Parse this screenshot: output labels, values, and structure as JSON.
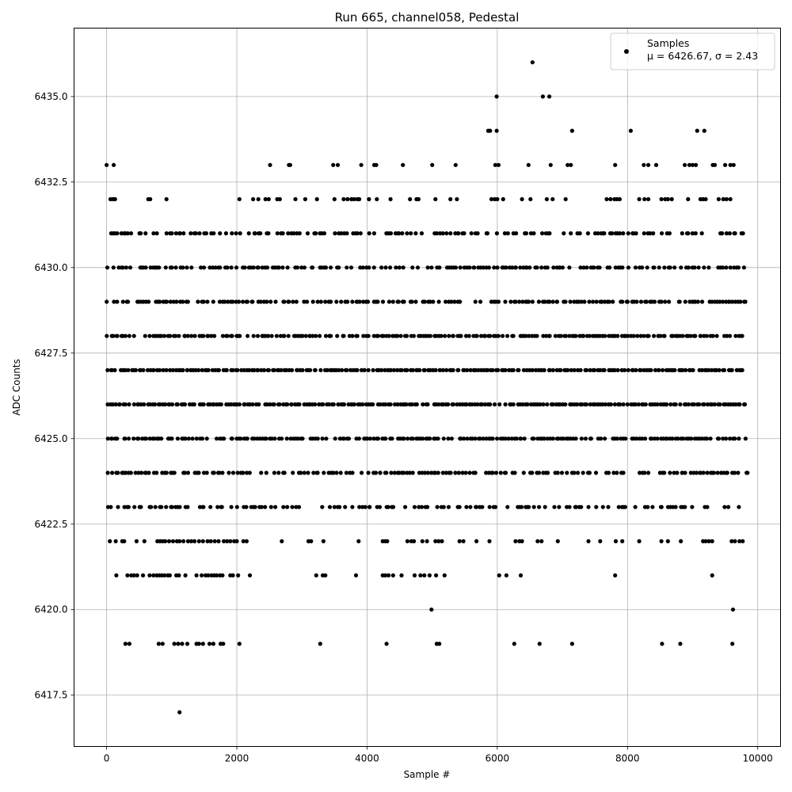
{
  "chart_data": {
    "type": "scatter",
    "title": "Run 665, channel058, Pedestal",
    "xlabel": "Sample #",
    "ylabel": "ADC Counts",
    "xlim": [
      -500,
      10350
    ],
    "ylim": [
      6416.0,
      6437.0
    ],
    "xticks": [
      0,
      2000,
      4000,
      6000,
      8000,
      10000
    ],
    "yticks": [
      6417.5,
      6420.0,
      6422.5,
      6425.0,
      6427.5,
      6430.0,
      6432.5,
      6435.0
    ],
    "grid": true,
    "legend": {
      "placement": "top-right",
      "entries": [
        {
          "name": "Samples",
          "stats": "μ = 6426.67, σ = 2.43"
        }
      ]
    },
    "colors": {
      "points": "#000000",
      "grid": "#b0b0b0"
    },
    "sample_range": [
      0,
      9850
    ],
    "dense_levels": [
      {
        "y": 6423,
        "fraction": 0.55
      },
      {
        "y": 6424,
        "fraction": 0.7
      },
      {
        "y": 6425,
        "fraction": 0.85
      },
      {
        "y": 6426,
        "fraction": 0.95
      },
      {
        "y": 6427,
        "fraction": 0.95
      },
      {
        "y": 6428,
        "fraction": 0.85
      },
      {
        "y": 6429,
        "fraction": 0.75
      },
      {
        "y": 6430,
        "fraction": 0.7
      },
      {
        "y": 6431,
        "fraction": 0.6
      }
    ],
    "sparse_points": [
      {
        "x": 0,
        "y": 6433
      },
      {
        "x": 110,
        "y": 6433
      },
      {
        "x": 2510,
        "y": 6433
      },
      {
        "x": 2800,
        "y": 6433
      },
      {
        "x": 2820,
        "y": 6433
      },
      {
        "x": 3480,
        "y": 6433
      },
      {
        "x": 3550,
        "y": 6433
      },
      {
        "x": 3910,
        "y": 6433
      },
      {
        "x": 4110,
        "y": 6433
      },
      {
        "x": 4140,
        "y": 6433
      },
      {
        "x": 4550,
        "y": 6433
      },
      {
        "x": 5000,
        "y": 6433
      },
      {
        "x": 5360,
        "y": 6433
      },
      {
        "x": 5970,
        "y": 6433
      },
      {
        "x": 6020,
        "y": 6433
      },
      {
        "x": 6480,
        "y": 6433
      },
      {
        "x": 6820,
        "y": 6433
      },
      {
        "x": 7080,
        "y": 6433
      },
      {
        "x": 7130,
        "y": 6433
      },
      {
        "x": 7810,
        "y": 6433
      },
      {
        "x": 8250,
        "y": 6433
      },
      {
        "x": 8320,
        "y": 6433
      },
      {
        "x": 8440,
        "y": 6433
      },
      {
        "x": 8880,
        "y": 6433
      },
      {
        "x": 8950,
        "y": 6433
      },
      {
        "x": 9000,
        "y": 6433
      },
      {
        "x": 9050,
        "y": 6433
      },
      {
        "x": 9310,
        "y": 6433
      },
      {
        "x": 9340,
        "y": 6433
      },
      {
        "x": 9500,
        "y": 6433
      },
      {
        "x": 9580,
        "y": 6433
      },
      {
        "x": 9630,
        "y": 6433
      },
      {
        "x": 5860,
        "y": 6434
      },
      {
        "x": 5890,
        "y": 6434
      },
      {
        "x": 5990,
        "y": 6434
      },
      {
        "x": 7150,
        "y": 6434
      },
      {
        "x": 8050,
        "y": 6434
      },
      {
        "x": 9070,
        "y": 6434
      },
      {
        "x": 9180,
        "y": 6434
      },
      {
        "x": 5990,
        "y": 6435
      },
      {
        "x": 6700,
        "y": 6435
      },
      {
        "x": 6800,
        "y": 6435
      },
      {
        "x": 6540,
        "y": 6436
      },
      {
        "x": 60,
        "y": 6432
      },
      {
        "x": 100,
        "y": 6432
      },
      {
        "x": 130,
        "y": 6432
      },
      {
        "x": 640,
        "y": 6432
      },
      {
        "x": 670,
        "y": 6432
      },
      {
        "x": 920,
        "y": 6432
      },
      {
        "x": 2040,
        "y": 6432
      },
      {
        "x": 2250,
        "y": 6432
      },
      {
        "x": 2330,
        "y": 6432
      },
      {
        "x": 2440,
        "y": 6432
      },
      {
        "x": 2490,
        "y": 6432
      },
      {
        "x": 2620,
        "y": 6432
      },
      {
        "x": 2660,
        "y": 6432
      },
      {
        "x": 2900,
        "y": 6432
      },
      {
        "x": 3050,
        "y": 6432
      },
      {
        "x": 3230,
        "y": 6432
      },
      {
        "x": 3500,
        "y": 6432
      },
      {
        "x": 3640,
        "y": 6432
      },
      {
        "x": 3700,
        "y": 6432
      },
      {
        "x": 3760,
        "y": 6432
      },
      {
        "x": 3800,
        "y": 6432
      },
      {
        "x": 3850,
        "y": 6432
      },
      {
        "x": 3880,
        "y": 6432
      },
      {
        "x": 4030,
        "y": 6432
      },
      {
        "x": 4150,
        "y": 6432
      },
      {
        "x": 4360,
        "y": 6432
      },
      {
        "x": 4660,
        "y": 6432
      },
      {
        "x": 4760,
        "y": 6432
      },
      {
        "x": 4790,
        "y": 6432
      },
      {
        "x": 5050,
        "y": 6432
      },
      {
        "x": 5280,
        "y": 6432
      },
      {
        "x": 5380,
        "y": 6432
      },
      {
        "x": 5910,
        "y": 6432
      },
      {
        "x": 5960,
        "y": 6432
      },
      {
        "x": 6000,
        "y": 6432
      },
      {
        "x": 6090,
        "y": 6432
      },
      {
        "x": 6380,
        "y": 6432
      },
      {
        "x": 6510,
        "y": 6432
      },
      {
        "x": 6760,
        "y": 6432
      },
      {
        "x": 6850,
        "y": 6432
      },
      {
        "x": 7050,
        "y": 6432
      },
      {
        "x": 7680,
        "y": 6432
      },
      {
        "x": 7740,
        "y": 6432
      },
      {
        "x": 7800,
        "y": 6432
      },
      {
        "x": 7840,
        "y": 6432
      },
      {
        "x": 7880,
        "y": 6432
      },
      {
        "x": 8180,
        "y": 6432
      },
      {
        "x": 8260,
        "y": 6432
      },
      {
        "x": 8320,
        "y": 6432
      },
      {
        "x": 8520,
        "y": 6432
      },
      {
        "x": 8580,
        "y": 6432
      },
      {
        "x": 8620,
        "y": 6432
      },
      {
        "x": 8680,
        "y": 6432
      },
      {
        "x": 8930,
        "y": 6432
      },
      {
        "x": 9120,
        "y": 6432
      },
      {
        "x": 9160,
        "y": 6432
      },
      {
        "x": 9200,
        "y": 6432
      },
      {
        "x": 9400,
        "y": 6432
      },
      {
        "x": 9470,
        "y": 6432
      },
      {
        "x": 9520,
        "y": 6432
      },
      {
        "x": 9580,
        "y": 6432
      },
      {
        "x": 50,
        "y": 6422
      },
      {
        "x": 140,
        "y": 6422
      },
      {
        "x": 240,
        "y": 6422
      },
      {
        "x": 270,
        "y": 6422
      },
      {
        "x": 460,
        "y": 6422
      },
      {
        "x": 580,
        "y": 6422
      },
      {
        "x": 780,
        "y": 6422
      },
      {
        "x": 820,
        "y": 6422
      },
      {
        "x": 860,
        "y": 6422
      },
      {
        "x": 900,
        "y": 6422
      },
      {
        "x": 960,
        "y": 6422
      },
      {
        "x": 1020,
        "y": 6422
      },
      {
        "x": 1080,
        "y": 6422
      },
      {
        "x": 1120,
        "y": 6422
      },
      {
        "x": 1180,
        "y": 6422
      },
      {
        "x": 1250,
        "y": 6422
      },
      {
        "x": 1300,
        "y": 6422
      },
      {
        "x": 1350,
        "y": 6422
      },
      {
        "x": 1420,
        "y": 6422
      },
      {
        "x": 1480,
        "y": 6422
      },
      {
        "x": 1550,
        "y": 6422
      },
      {
        "x": 1600,
        "y": 6422
      },
      {
        "x": 1660,
        "y": 6422
      },
      {
        "x": 1720,
        "y": 6422
      },
      {
        "x": 1800,
        "y": 6422
      },
      {
        "x": 1850,
        "y": 6422
      },
      {
        "x": 1900,
        "y": 6422
      },
      {
        "x": 1960,
        "y": 6422
      },
      {
        "x": 2000,
        "y": 6422
      },
      {
        "x": 2100,
        "y": 6422
      },
      {
        "x": 2150,
        "y": 6422
      },
      {
        "x": 2690,
        "y": 6422
      },
      {
        "x": 3100,
        "y": 6422
      },
      {
        "x": 3140,
        "y": 6422
      },
      {
        "x": 3330,
        "y": 6422
      },
      {
        "x": 3870,
        "y": 6422
      },
      {
        "x": 4240,
        "y": 6422
      },
      {
        "x": 4280,
        "y": 6422
      },
      {
        "x": 4310,
        "y": 6422
      },
      {
        "x": 4620,
        "y": 6422
      },
      {
        "x": 4680,
        "y": 6422
      },
      {
        "x": 4720,
        "y": 6422
      },
      {
        "x": 4850,
        "y": 6422
      },
      {
        "x": 4920,
        "y": 6422
      },
      {
        "x": 5050,
        "y": 6422
      },
      {
        "x": 5100,
        "y": 6422
      },
      {
        "x": 5150,
        "y": 6422
      },
      {
        "x": 5420,
        "y": 6422
      },
      {
        "x": 5480,
        "y": 6422
      },
      {
        "x": 5680,
        "y": 6422
      },
      {
        "x": 5880,
        "y": 6422
      },
      {
        "x": 6280,
        "y": 6422
      },
      {
        "x": 6340,
        "y": 6422
      },
      {
        "x": 6380,
        "y": 6422
      },
      {
        "x": 6620,
        "y": 6422
      },
      {
        "x": 6680,
        "y": 6422
      },
      {
        "x": 6930,
        "y": 6422
      },
      {
        "x": 7400,
        "y": 6422
      },
      {
        "x": 7580,
        "y": 6422
      },
      {
        "x": 7820,
        "y": 6422
      },
      {
        "x": 7920,
        "y": 6422
      },
      {
        "x": 8180,
        "y": 6422
      },
      {
        "x": 8520,
        "y": 6422
      },
      {
        "x": 8620,
        "y": 6422
      },
      {
        "x": 8820,
        "y": 6422
      },
      {
        "x": 9160,
        "y": 6422
      },
      {
        "x": 9200,
        "y": 6422
      },
      {
        "x": 9250,
        "y": 6422
      },
      {
        "x": 9300,
        "y": 6422
      },
      {
        "x": 9600,
        "y": 6422
      },
      {
        "x": 9650,
        "y": 6422
      },
      {
        "x": 9720,
        "y": 6422
      },
      {
        "x": 9770,
        "y": 6422
      },
      {
        "x": 150,
        "y": 6421
      },
      {
        "x": 320,
        "y": 6421
      },
      {
        "x": 380,
        "y": 6421
      },
      {
        "x": 420,
        "y": 6421
      },
      {
        "x": 470,
        "y": 6421
      },
      {
        "x": 560,
        "y": 6421
      },
      {
        "x": 660,
        "y": 6421
      },
      {
        "x": 720,
        "y": 6421
      },
      {
        "x": 770,
        "y": 6421
      },
      {
        "x": 810,
        "y": 6421
      },
      {
        "x": 850,
        "y": 6421
      },
      {
        "x": 890,
        "y": 6421
      },
      {
        "x": 940,
        "y": 6421
      },
      {
        "x": 970,
        "y": 6421
      },
      {
        "x": 1070,
        "y": 6421
      },
      {
        "x": 1110,
        "y": 6421
      },
      {
        "x": 1210,
        "y": 6421
      },
      {
        "x": 1380,
        "y": 6421
      },
      {
        "x": 1460,
        "y": 6421
      },
      {
        "x": 1520,
        "y": 6421
      },
      {
        "x": 1560,
        "y": 6421
      },
      {
        "x": 1610,
        "y": 6421
      },
      {
        "x": 1650,
        "y": 6421
      },
      {
        "x": 1690,
        "y": 6421
      },
      {
        "x": 1740,
        "y": 6421
      },
      {
        "x": 1780,
        "y": 6421
      },
      {
        "x": 1900,
        "y": 6421
      },
      {
        "x": 1940,
        "y": 6421
      },
      {
        "x": 2020,
        "y": 6421
      },
      {
        "x": 2200,
        "y": 6421
      },
      {
        "x": 3220,
        "y": 6421
      },
      {
        "x": 3320,
        "y": 6421
      },
      {
        "x": 3360,
        "y": 6421
      },
      {
        "x": 3830,
        "y": 6421
      },
      {
        "x": 4240,
        "y": 6421
      },
      {
        "x": 4280,
        "y": 6421
      },
      {
        "x": 4330,
        "y": 6421
      },
      {
        "x": 4400,
        "y": 6421
      },
      {
        "x": 4530,
        "y": 6421
      },
      {
        "x": 4730,
        "y": 6421
      },
      {
        "x": 4820,
        "y": 6421
      },
      {
        "x": 4880,
        "y": 6421
      },
      {
        "x": 4960,
        "y": 6421
      },
      {
        "x": 5060,
        "y": 6421
      },
      {
        "x": 5190,
        "y": 6421
      },
      {
        "x": 6030,
        "y": 6421
      },
      {
        "x": 6140,
        "y": 6421
      },
      {
        "x": 6360,
        "y": 6421
      },
      {
        "x": 7810,
        "y": 6421
      },
      {
        "x": 9300,
        "y": 6421
      },
      {
        "x": 4990,
        "y": 6420
      },
      {
        "x": 9620,
        "y": 6420
      },
      {
        "x": 290,
        "y": 6419
      },
      {
        "x": 350,
        "y": 6419
      },
      {
        "x": 800,
        "y": 6419
      },
      {
        "x": 860,
        "y": 6419
      },
      {
        "x": 1040,
        "y": 6419
      },
      {
        "x": 1100,
        "y": 6419
      },
      {
        "x": 1160,
        "y": 6419
      },
      {
        "x": 1240,
        "y": 6419
      },
      {
        "x": 1380,
        "y": 6419
      },
      {
        "x": 1420,
        "y": 6419
      },
      {
        "x": 1480,
        "y": 6419
      },
      {
        "x": 1580,
        "y": 6419
      },
      {
        "x": 1640,
        "y": 6419
      },
      {
        "x": 1750,
        "y": 6419
      },
      {
        "x": 1790,
        "y": 6419
      },
      {
        "x": 2040,
        "y": 6419
      },
      {
        "x": 3280,
        "y": 6419
      },
      {
        "x": 4300,
        "y": 6419
      },
      {
        "x": 5070,
        "y": 6419
      },
      {
        "x": 5110,
        "y": 6419
      },
      {
        "x": 6260,
        "y": 6419
      },
      {
        "x": 6650,
        "y": 6419
      },
      {
        "x": 7150,
        "y": 6419
      },
      {
        "x": 8530,
        "y": 6419
      },
      {
        "x": 8810,
        "y": 6419
      },
      {
        "x": 9610,
        "y": 6419
      },
      {
        "x": 1120,
        "y": 6417
      }
    ]
  }
}
